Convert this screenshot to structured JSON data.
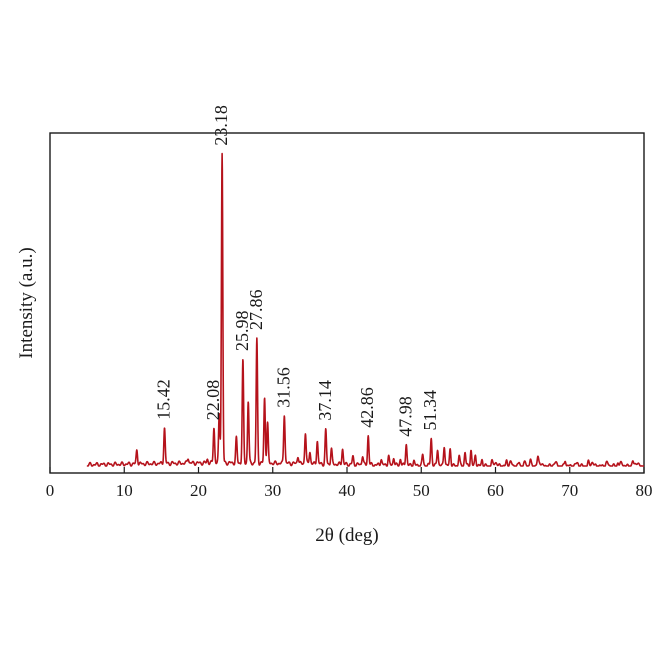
{
  "chart_data": {
    "type": "line",
    "x_label": "2θ (deg)",
    "y_label": "Intensity (a.u.)",
    "xlim": [
      0,
      80
    ],
    "x_ticks": [
      0,
      10,
      20,
      30,
      40,
      50,
      60,
      70,
      80
    ],
    "y_ticks_shown": false,
    "grid": false,
    "legend": "none",
    "line_color": "#b5121b",
    "baseline_start": 5,
    "noise_peaks": [
      [
        60,
        0.012
      ],
      [
        62,
        0.012
      ],
      [
        64,
        0.01
      ],
      [
        66,
        0.012
      ],
      [
        68,
        0.012
      ],
      [
        71,
        0.01
      ],
      [
        73,
        0.012
      ],
      [
        75,
        0.01
      ],
      [
        77,
        0.01
      ],
      [
        79,
        0.012
      ]
    ],
    "peaks": [
      {
        "x": 11.7,
        "y": 0.045
      },
      {
        "x": 15.42,
        "y": 0.115,
        "label": "15.42"
      },
      {
        "x": 18.6,
        "y": 0.018
      },
      {
        "x": 21.2,
        "y": 0.012
      },
      {
        "x": 22.08,
        "y": 0.115,
        "label": "22.08"
      },
      {
        "x": 22.8,
        "y": 0.16
      },
      {
        "x": 23.18,
        "y": 1.0,
        "label": "23.18"
      },
      {
        "x": 25.1,
        "y": 0.08
      },
      {
        "x": 25.98,
        "y": 0.33,
        "label": "25.98"
      },
      {
        "x": 26.7,
        "y": 0.2
      },
      {
        "x": 27.86,
        "y": 0.4,
        "label": "27.86"
      },
      {
        "x": 28.9,
        "y": 0.21
      },
      {
        "x": 29.3,
        "y": 0.13
      },
      {
        "x": 31.56,
        "y": 0.16,
        "label": "31.56"
      },
      {
        "x": 33.4,
        "y": 0.025
      },
      {
        "x": 34.4,
        "y": 0.1
      },
      {
        "x": 35.0,
        "y": 0.04
      },
      {
        "x": 36.0,
        "y": 0.075
      },
      {
        "x": 37.14,
        "y": 0.11,
        "label": "37.14"
      },
      {
        "x": 37.9,
        "y": 0.05
      },
      {
        "x": 39.4,
        "y": 0.05
      },
      {
        "x": 40.8,
        "y": 0.025
      },
      {
        "x": 42.1,
        "y": 0.03
      },
      {
        "x": 42.86,
        "y": 0.095,
        "label": "42.86"
      },
      {
        "x": 44.6,
        "y": 0.02
      },
      {
        "x": 45.6,
        "y": 0.03
      },
      {
        "x": 46.3,
        "y": 0.025
      },
      {
        "x": 47.2,
        "y": 0.02
      },
      {
        "x": 47.98,
        "y": 0.07,
        "label": "47.98"
      },
      {
        "x": 49.0,
        "y": 0.015
      },
      {
        "x": 50.2,
        "y": 0.035
      },
      {
        "x": 51.34,
        "y": 0.09,
        "label": "51.34"
      },
      {
        "x": 52.2,
        "y": 0.055
      },
      {
        "x": 53.1,
        "y": 0.065
      },
      {
        "x": 53.9,
        "y": 0.055
      },
      {
        "x": 55.1,
        "y": 0.035
      },
      {
        "x": 55.9,
        "y": 0.045
      },
      {
        "x": 56.7,
        "y": 0.05
      },
      {
        "x": 57.3,
        "y": 0.035
      },
      {
        "x": 58.2,
        "y": 0.02
      },
      {
        "x": 59.5,
        "y": 0.015
      },
      {
        "x": 61.5,
        "y": 0.015
      },
      {
        "x": 63.2,
        "y": 0.012
      },
      {
        "x": 64.7,
        "y": 0.02
      },
      {
        "x": 65.7,
        "y": 0.025
      },
      {
        "x": 69.4,
        "y": 0.02
      },
      {
        "x": 72.5,
        "y": 0.012
      },
      {
        "x": 76.5,
        "y": 0.012
      },
      {
        "x": 78.5,
        "y": 0.015
      }
    ]
  }
}
